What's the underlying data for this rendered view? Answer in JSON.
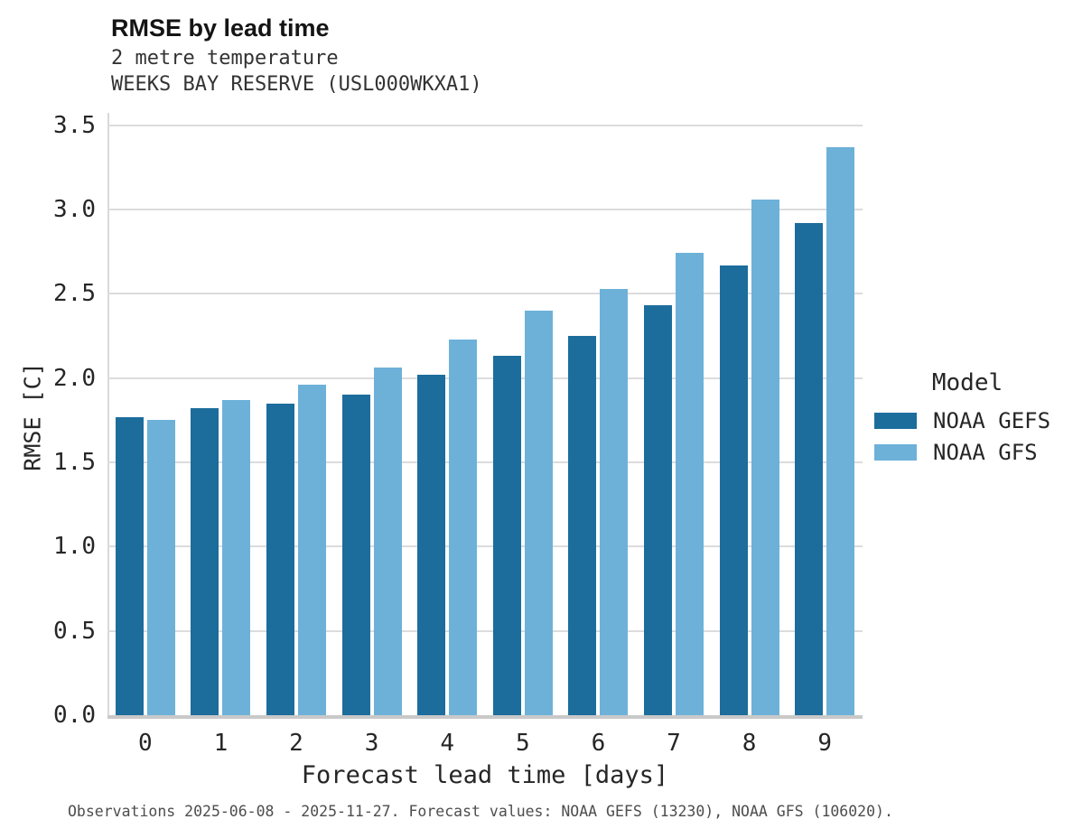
{
  "caption": "Observations 2025-06-08 - 2025-11-27. Forecast values: NOAA GEFS (13230), NOAA GFS (106020).",
  "chart_data": {
    "type": "bar",
    "title": "RMSE by lead time",
    "subtitle": [
      "2 metre temperature",
      "WEEKS BAY RESERVE (USL000WKXA1)"
    ],
    "xlabel": "Forecast lead time [days]",
    "ylabel": "RMSE [C]",
    "categories": [
      "0",
      "1",
      "2",
      "3",
      "4",
      "5",
      "6",
      "7",
      "8",
      "9"
    ],
    "series": [
      {
        "name": "NOAA GEFS",
        "color": "#1c6d9c",
        "values": [
          1.77,
          1.82,
          1.85,
          1.9,
          2.02,
          2.13,
          2.25,
          2.43,
          2.67,
          2.92
        ]
      },
      {
        "name": "NOAA GFS",
        "color": "#6db1d9",
        "values": [
          1.75,
          1.87,
          1.96,
          2.06,
          2.23,
          2.4,
          2.53,
          2.74,
          3.06,
          3.37
        ]
      }
    ],
    "ylim": [
      0,
      3.5
    ],
    "yticks": [
      0.0,
      0.5,
      1.0,
      1.5,
      2.0,
      2.5,
      3.0,
      3.5
    ],
    "grid": true,
    "legend_title": "Model",
    "legend_position": "right",
    "grid_color": "#dcdcdc",
    "spine_color": "#c9c9c9",
    "text_color": "#262626"
  }
}
